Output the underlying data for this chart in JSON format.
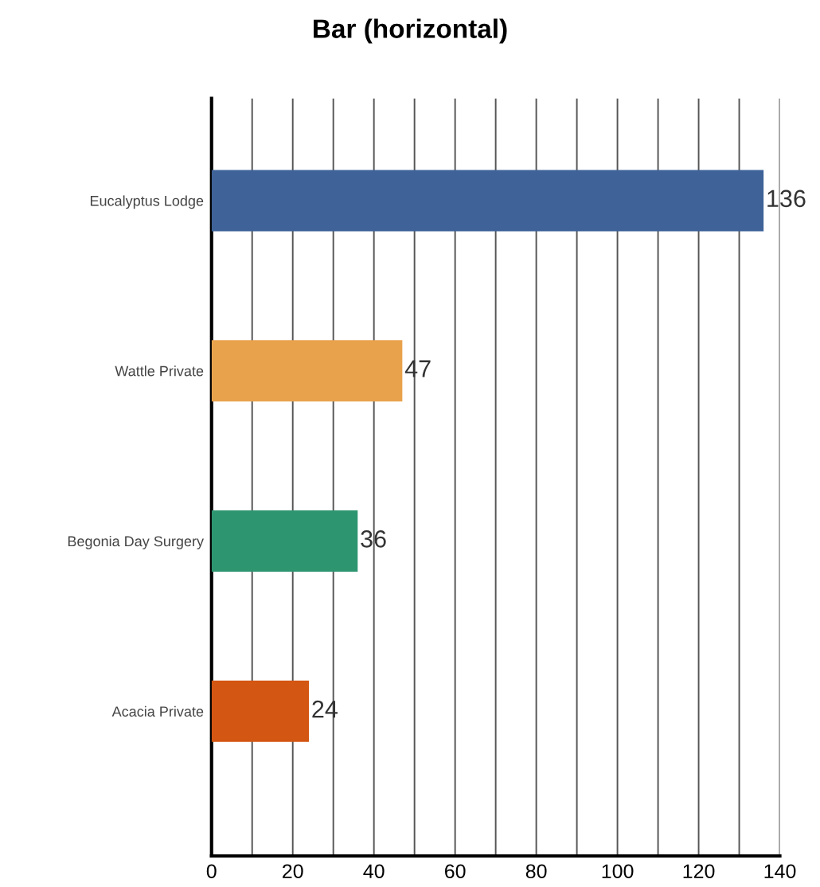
{
  "chart_data": {
    "type": "bar",
    "title": "Bar (horizontal)",
    "orientation": "horizontal",
    "categories": [
      "Eucalyptus Lodge",
      "Wattle Private",
      "Begonia Day Surgery",
      "Acacia Private"
    ],
    "values": [
      136,
      47,
      36,
      24
    ],
    "colors": [
      "#3f6399",
      "#e8a24c",
      "#2e9571",
      "#d35612"
    ],
    "xlim": [
      0,
      140
    ],
    "xticks": [
      0,
      {
        "value": 10,
        "label": null
      },
      20,
      {
        "value": 30,
        "label": null
      },
      40,
      {
        "value": 50,
        "label": null
      },
      60,
      {
        "value": 70,
        "label": null
      },
      80,
      {
        "value": 90,
        "label": null
      },
      100,
      {
        "value": 110,
        "label": null
      },
      120,
      {
        "value": 130,
        "label": null
      },
      140
    ],
    "grid": "x",
    "data_labels": true,
    "legend": false
  }
}
